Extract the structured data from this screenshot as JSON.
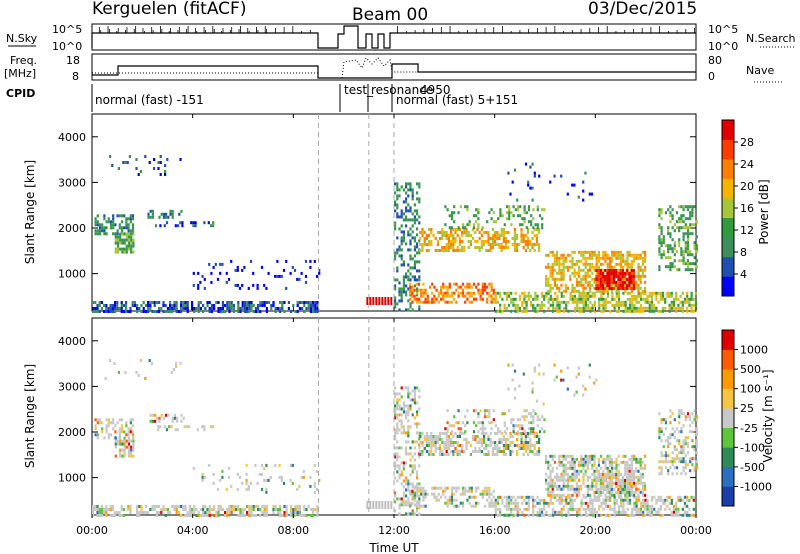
{
  "header": {
    "station": "Kerguelen (fitACF)",
    "beam": "Beam 00",
    "date": "03/Dec/2015"
  },
  "top_panels": {
    "nsky_label": "N.Sky",
    "nsky_ticks": [
      "10^5",
      "10^0"
    ],
    "nsearch_label": "N.Search",
    "nsearch_ticks": [
      "10^5",
      "10^0"
    ],
    "freq_label_line1": "Freq.",
    "freq_label_line2": "[MHz]",
    "freq_ticks": [
      "18",
      "8"
    ],
    "nave_label": "Nave",
    "nave_ticks": [
      "80",
      "0"
    ],
    "cpid_label": "CPID",
    "cpid_texts": [
      "normal (fast) -151",
      "test_",
      "resonance",
      "4950",
      "normal (fast) 5+151"
    ]
  },
  "chart_data": [
    {
      "type": "heatmap",
      "name": "power-panel",
      "ylabel": "Slant Range [km]",
      "yticks": [
        "4000",
        "3000",
        "2000",
        "1000"
      ],
      "yrange": [
        180,
        4500
      ],
      "colorbar_label": "Power [dB]",
      "colorbar_ticks": [
        "28",
        "24",
        "20",
        "16",
        "12",
        "8",
        "4"
      ],
      "colors": [
        "#0000ff",
        "#1f4fb0",
        "#3a8f5a",
        "#2f9a3e",
        "#a6c63a",
        "#f4b400",
        "#ff7f00",
        "#ff3b00",
        "#e00000"
      ],
      "dashed_times_ut": [
        9.0,
        11.0,
        12.0
      ]
    },
    {
      "type": "heatmap",
      "name": "velocity-panel",
      "ylabel": "Slant Range [km]",
      "yticks": [
        "4000",
        "3000",
        "2000",
        "1000"
      ],
      "yrange": [
        180,
        4500
      ],
      "colorbar_label": "Velocity [m s⁻¹]",
      "colorbar_ticks": [
        "1000",
        "500",
        "100",
        "25",
        "-25",
        "-100",
        "-500",
        "-1000"
      ],
      "colors": [
        "#1a3fa8",
        "#2b6fc0",
        "#2e8b57",
        "#5ec43a",
        "#c8c8c8",
        "#f5c542",
        "#ff9a00",
        "#ff5a00",
        "#e00000"
      ],
      "dashed_times_ut": [
        9.0,
        11.0,
        12.0
      ]
    }
  ],
  "x_axis": {
    "label": "Time UT",
    "ticks": [
      "00:00",
      "04:00",
      "08:00",
      "12:00",
      "16:00",
      "20:00",
      "00:00"
    ],
    "range_hours": [
      0,
      24
    ]
  }
}
